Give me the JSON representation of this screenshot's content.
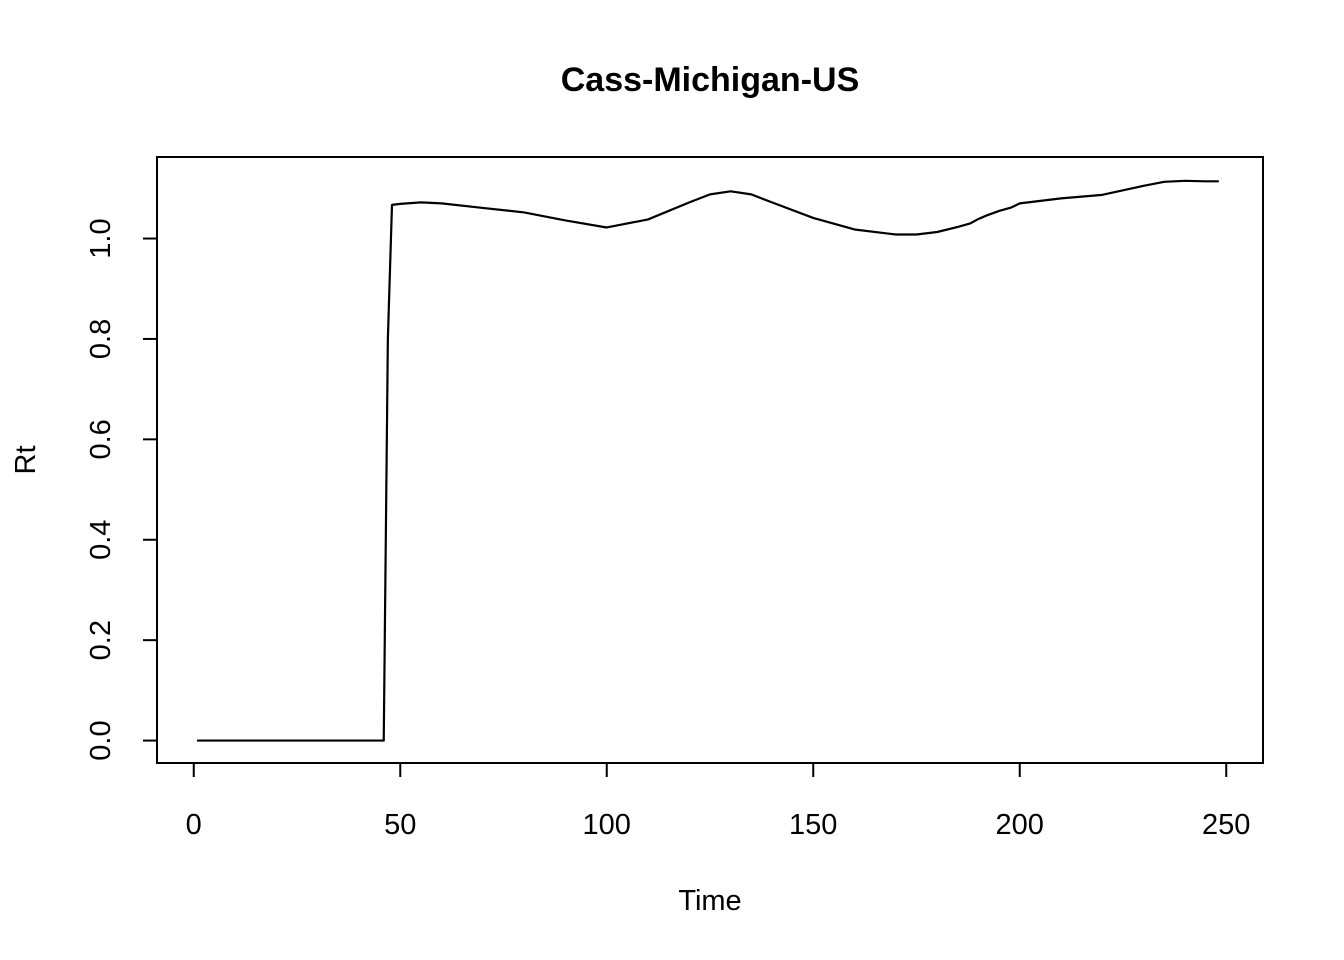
{
  "chart_data": {
    "type": "line",
    "title": "Cass-Michigan-US",
    "xlabel": "Time",
    "ylabel": "Rt",
    "xlim": [
      -8.9,
      258.9
    ],
    "ylim": [
      -0.0447,
      1.1624
    ],
    "xticks": [
      0,
      50,
      100,
      150,
      200,
      250
    ],
    "yticks": [
      0.0,
      0.2,
      0.4,
      0.6,
      0.8,
      1.0
    ],
    "xtick_labels": [
      "0",
      "50",
      "100",
      "150",
      "200",
      "250"
    ],
    "ytick_labels": [
      "0.0",
      "0.2",
      "0.4",
      "0.6",
      "0.8",
      "1.0"
    ],
    "grid": false,
    "legend": "none",
    "series": [
      {
        "name": "Rt",
        "color": "#000000",
        "x": [
          1,
          10,
          20,
          30,
          40,
          46,
          47,
          48,
          50,
          55,
          60,
          70,
          80,
          90,
          100,
          110,
          120,
          125,
          130,
          135,
          140,
          150,
          160,
          170,
          175,
          180,
          185,
          188,
          190,
          192,
          195,
          198,
          200,
          210,
          220,
          230,
          235,
          240,
          245,
          248
        ],
        "values": [
          0,
          0,
          0,
          0,
          0,
          0,
          0.8,
          1.067,
          1.069,
          1.072,
          1.07,
          1.061,
          1.052,
          1.036,
          1.022,
          1.038,
          1.072,
          1.088,
          1.094,
          1.088,
          1.072,
          1.041,
          1.018,
          1.008,
          1.008,
          1.013,
          1.023,
          1.03,
          1.039,
          1.046,
          1.055,
          1.062,
          1.07,
          1.08,
          1.087,
          1.105,
          1.113,
          1.115,
          1.114,
          1.114
        ]
      }
    ]
  }
}
